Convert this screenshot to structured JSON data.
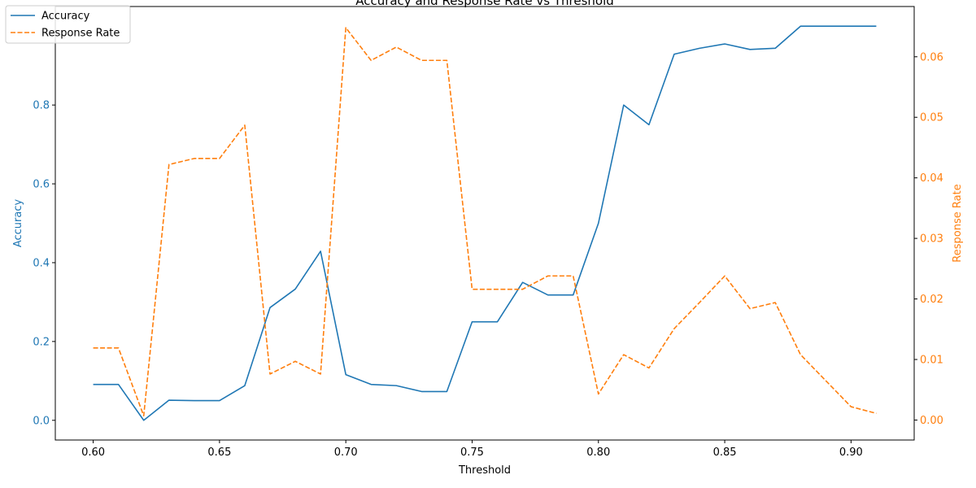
{
  "chart_data": {
    "type": "line",
    "title": "Accuracy and Response Rate vs Threshold",
    "xlabel": "Threshold",
    "ylabel_left": "Accuracy",
    "ylabel_right": "Response Rate",
    "x": [
      0.6,
      0.61,
      0.62,
      0.63,
      0.64,
      0.65,
      0.66,
      0.67,
      0.68,
      0.69,
      0.7,
      0.71,
      0.72,
      0.73,
      0.74,
      0.75,
      0.76,
      0.77,
      0.78,
      0.79,
      0.8,
      0.81,
      0.82,
      0.83,
      0.84,
      0.85,
      0.86,
      0.87,
      0.88,
      0.89,
      0.9,
      0.91
    ],
    "xlim": [
      0.585,
      0.925
    ],
    "xticks": [
      "0.60",
      "0.65",
      "0.70",
      "0.75",
      "0.80",
      "0.85",
      "0.90"
    ],
    "xtick_values": [
      0.6,
      0.65,
      0.7,
      0.75,
      0.8,
      0.85,
      0.9
    ],
    "ylim_left": [
      -0.05,
      1.05
    ],
    "yticks_left": [
      "0.0",
      "0.2",
      "0.4",
      "0.6",
      "0.8"
    ],
    "ytick_values_left": [
      0.0,
      0.2,
      0.4,
      0.6,
      0.8
    ],
    "ylim_right": [
      -0.0033,
      0.0683
    ],
    "yticks_right": [
      "0.00",
      "0.01",
      "0.02",
      "0.03",
      "0.04",
      "0.05",
      "0.06"
    ],
    "ytick_values_right": [
      0.0,
      0.01,
      0.02,
      0.03,
      0.04,
      0.05,
      0.06
    ],
    "grid": false,
    "legend_placement": "top-left",
    "series": [
      {
        "name": "Accuracy",
        "axis": "left",
        "color": "#1f77b4",
        "dash": "solid",
        "values": [
          0.091,
          0.091,
          0.0,
          0.051,
          0.05,
          0.05,
          0.088,
          0.286,
          0.333,
          0.429,
          0.116,
          0.091,
          0.088,
          0.073,
          0.073,
          0.25,
          0.25,
          0.35,
          0.318,
          0.318,
          0.5,
          0.8,
          0.75,
          0.929,
          0.944,
          0.955,
          0.941,
          0.944,
          1.0,
          1.0,
          1.0,
          1.0
        ]
      },
      {
        "name": "Response Rate",
        "axis": "right",
        "color": "#ff7f0e",
        "dash": "dashed",
        "values": [
          0.0119,
          0.0119,
          0.0007,
          0.0422,
          0.0432,
          0.0432,
          0.0487,
          0.0076,
          0.0097,
          0.0076,
          0.0648,
          0.0594,
          0.0616,
          0.0594,
          0.0594,
          0.0216,
          0.0216,
          0.0216,
          0.0238,
          0.0238,
          0.0043,
          0.0108,
          0.0086,
          0.0151,
          0.0194,
          0.0238,
          0.0184,
          0.0194,
          0.0108,
          0.0065,
          0.0022,
          0.0011
        ]
      }
    ]
  }
}
